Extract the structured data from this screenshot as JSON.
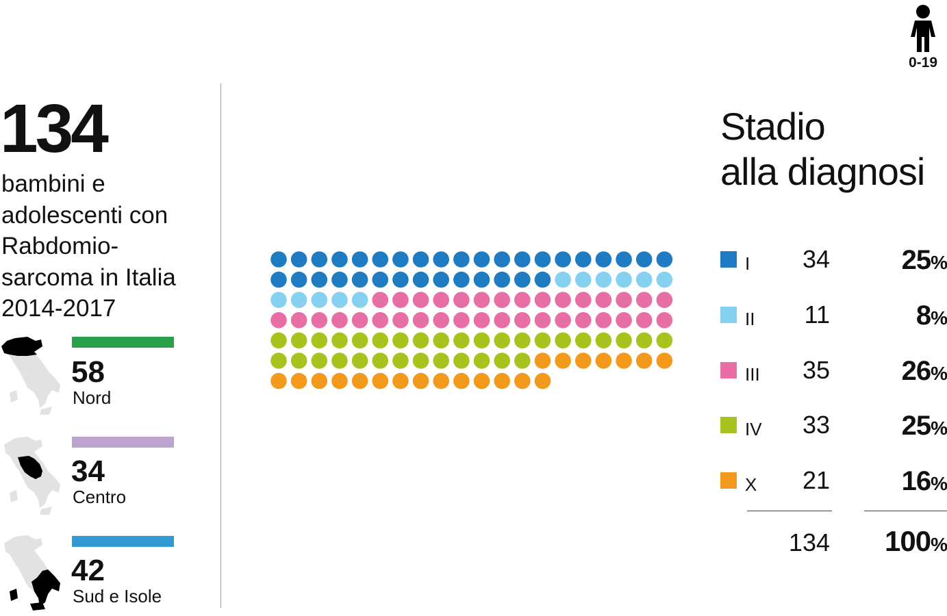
{
  "age_group": {
    "label": "0-19",
    "icon": "child-icon"
  },
  "summary": {
    "total": "134",
    "subtitle_lines": [
      "bambini e",
      "adolescenti con",
      "Rabdomio-",
      "sarcoma in Italia",
      "2014-2017"
    ]
  },
  "regions": [
    {
      "value": "58",
      "name": "Nord",
      "color": "#2aa04a",
      "icon": "italy-map-north-icon"
    },
    {
      "value": "34",
      "name": "Centro",
      "color": "#bda3d0",
      "icon": "italy-map-center-icon"
    },
    {
      "value": "42",
      "name": "Sud e Isole",
      "color": "#3399d3",
      "icon": "italy-map-south-icon"
    }
  ],
  "title_lines": [
    "Stadio",
    "alla diagnosi"
  ],
  "chart_data": {
    "type": "waffle",
    "title": "Stadio alla diagnosi",
    "unit": "1 dot = 1 child",
    "columns": 20,
    "categories": [
      "I",
      "II",
      "III",
      "IV",
      "X"
    ],
    "values": [
      34,
      11,
      35,
      33,
      21
    ],
    "percentages": [
      "25",
      "8",
      "26",
      "25",
      "16"
    ],
    "colors": [
      "#1f7cc2",
      "#86d0f0",
      "#e86ea6",
      "#a8c31e",
      "#f39a1d"
    ],
    "total": 134,
    "total_percentage": "100"
  },
  "legend": {
    "pct_symbol": "%",
    "rows": [
      {
        "label": "I",
        "count": "34",
        "pct": "25"
      },
      {
        "label": "II",
        "count": "11",
        "pct": "8"
      },
      {
        "label": "III",
        "count": "35",
        "pct": "26"
      },
      {
        "label": "IV",
        "count": "33",
        "pct": "25"
      },
      {
        "label": "X",
        "count": "21",
        "pct": "16"
      }
    ],
    "total_count": "134",
    "total_pct": "100"
  }
}
